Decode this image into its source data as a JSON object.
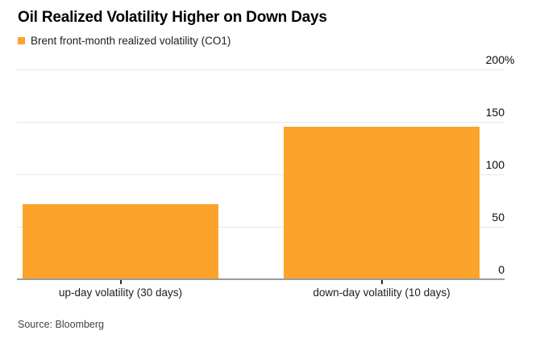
{
  "chart_data": {
    "type": "bar",
    "title": "Oil Realized Volatility Higher on Down Days",
    "legend": [
      "Brent front-month realized volatility (CO1)"
    ],
    "categories": [
      "up-day volatility (30 days)",
      "down-day volatility (10 days)"
    ],
    "values": [
      71,
      145
    ],
    "unit": "%",
    "ylim": [
      0,
      200
    ],
    "yticks": [
      0,
      50,
      100,
      150,
      200
    ],
    "xlabel": "",
    "ylabel": "",
    "grid": "horizontal",
    "y_axis_side": "right",
    "legend_position": "top-left",
    "source": "Source: Bloomberg"
  },
  "colors": {
    "bar": "#FCA32B",
    "gridline": "#E7E7E7",
    "axis_line": "#9B9B9B",
    "tick_mark": "#2B2B2B",
    "title_text": "#000000",
    "body_text": "#1D1D1D",
    "source_text": "#424242",
    "background": "#FFFFFF"
  }
}
